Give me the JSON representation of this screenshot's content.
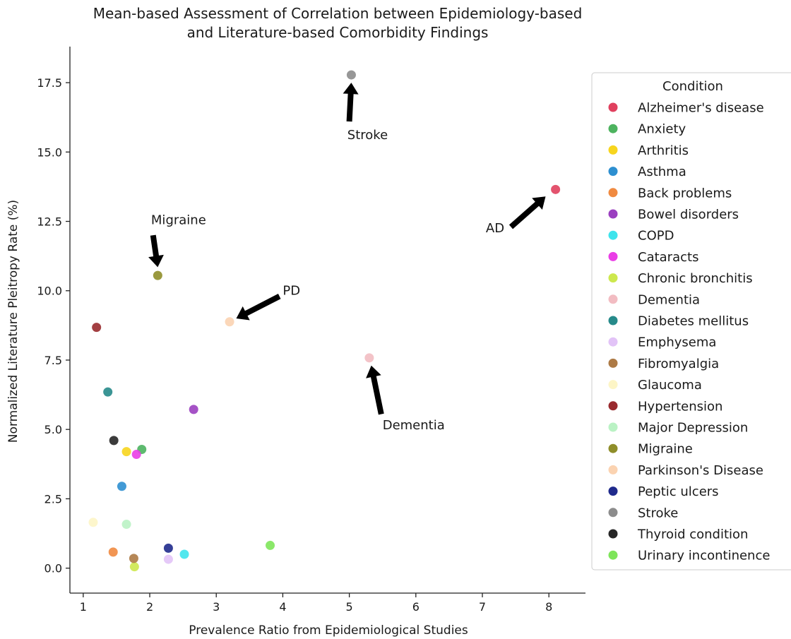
{
  "chart_data": {
    "type": "scatter",
    "title_lines": [
      "Mean-based Assessment of Correlation between Epidemiology-based",
      "and Literature-based Comorbidity Findings"
    ],
    "xlabel": "Prevalence Ratio from Epidemiological Studies",
    "ylabel": "Normalized Literature Pleitropy Rate (%)",
    "xlim": [
      0.8,
      8.55
    ],
    "ylim": [
      -0.9,
      18.8
    ],
    "x_ticks": [
      1,
      2,
      3,
      4,
      5,
      6,
      7,
      8
    ],
    "x_tick_labels": [
      "1",
      "2",
      "3",
      "4",
      "5",
      "6",
      "7",
      "8"
    ],
    "y_ticks": [
      0,
      2.5,
      5,
      7.5,
      10,
      12.5,
      15,
      17.5
    ],
    "y_tick_labels": [
      "0.0",
      "2.5",
      "5.0",
      "7.5",
      "10.0",
      "12.5",
      "15.0",
      "17.5"
    ],
    "grid": false,
    "legend_title": "Condition",
    "legend_placement": "right, outside plot",
    "series": [
      {
        "name": "Alzheimer's disease",
        "color": "#e0405e",
        "x": 8.1,
        "y": 13.65
      },
      {
        "name": "Anxiety",
        "color": "#4db35f",
        "x": 1.88,
        "y": 4.28
      },
      {
        "name": "Arthritis",
        "color": "#f7d51e",
        "x": 1.65,
        "y": 4.2
      },
      {
        "name": "Asthma",
        "color": "#2d8fd0",
        "x": 1.58,
        "y": 2.95
      },
      {
        "name": "Back problems",
        "color": "#f08a40",
        "x": 1.45,
        "y": 0.58
      },
      {
        "name": "Bowel disorders",
        "color": "#9b3fc0",
        "x": 2.66,
        "y": 5.72
      },
      {
        "name": "COPD",
        "color": "#3ee4ec",
        "x": 2.52,
        "y": 0.5
      },
      {
        "name": "Cataracts",
        "color": "#ea3ee6",
        "x": 1.8,
        "y": 4.1
      },
      {
        "name": "Chronic bronchitis",
        "color": "#cde84e",
        "x": 1.77,
        "y": 0.05
      },
      {
        "name": "Dementia",
        "color": "#f2bcc2",
        "x": 5.3,
        "y": 7.58
      },
      {
        "name": "Diabetes mellitus",
        "color": "#268a8a",
        "x": 1.37,
        "y": 6.35
      },
      {
        "name": "Emphysema",
        "color": "#e2c3f7",
        "x": 2.28,
        "y": 0.32
      },
      {
        "name": "Fibromyalgia",
        "color": "#ad7a45",
        "x": 1.76,
        "y": 0.35
      },
      {
        "name": "Glaucoma",
        "color": "#fdf5c6",
        "x": 1.15,
        "y": 1.65
      },
      {
        "name": "Hypertension",
        "color": "#992a2e",
        "x": 1.2,
        "y": 8.68
      },
      {
        "name": "Major Depression",
        "color": "#baf2c4",
        "x": 1.65,
        "y": 1.58
      },
      {
        "name": "Migraine",
        "color": "#8f8e2a",
        "x": 2.12,
        "y": 10.55
      },
      {
        "name": "Parkinson's Disease",
        "color": "#fbd3b1",
        "x": 3.2,
        "y": 8.88
      },
      {
        "name": "Peptic ulcers",
        "color": "#1f2a8c",
        "x": 2.28,
        "y": 0.72
      },
      {
        "name": "Stroke",
        "color": "#8c8c8c",
        "x": 5.03,
        "y": 17.78
      },
      {
        "name": "Thyroid condition",
        "color": "#262626",
        "x": 1.46,
        "y": 4.6
      },
      {
        "name": "Urinary incontinence",
        "color": "#7ee55a",
        "x": 3.81,
        "y": 0.82
      }
    ],
    "annotations": [
      {
        "text": "Stroke",
        "text_x": 4.97,
        "text_y": 15.47,
        "text_anchor": "start",
        "from": [
          5.0,
          16.1
        ],
        "to": [
          5.03,
          17.5
        ]
      },
      {
        "text": "AD",
        "text_x": 7.33,
        "text_y": 12.1,
        "text_anchor": "end",
        "from": [
          7.43,
          12.3
        ],
        "to": [
          7.95,
          13.4
        ]
      },
      {
        "text": "Migraine",
        "text_x": 2.02,
        "text_y": 12.4,
        "text_anchor": "start",
        "from": [
          2.05,
          12.0
        ],
        "to": [
          2.12,
          10.85
        ]
      },
      {
        "text": "PD",
        "text_x": 4.0,
        "text_y": 9.85,
        "text_anchor": "start",
        "from": [
          3.95,
          9.8
        ],
        "to": [
          3.3,
          9.0
        ]
      },
      {
        "text": "Dementia",
        "text_x": 5.5,
        "text_y": 5.0,
        "text_anchor": "start",
        "from": [
          5.48,
          5.55
        ],
        "to": [
          5.33,
          7.3
        ]
      }
    ]
  }
}
